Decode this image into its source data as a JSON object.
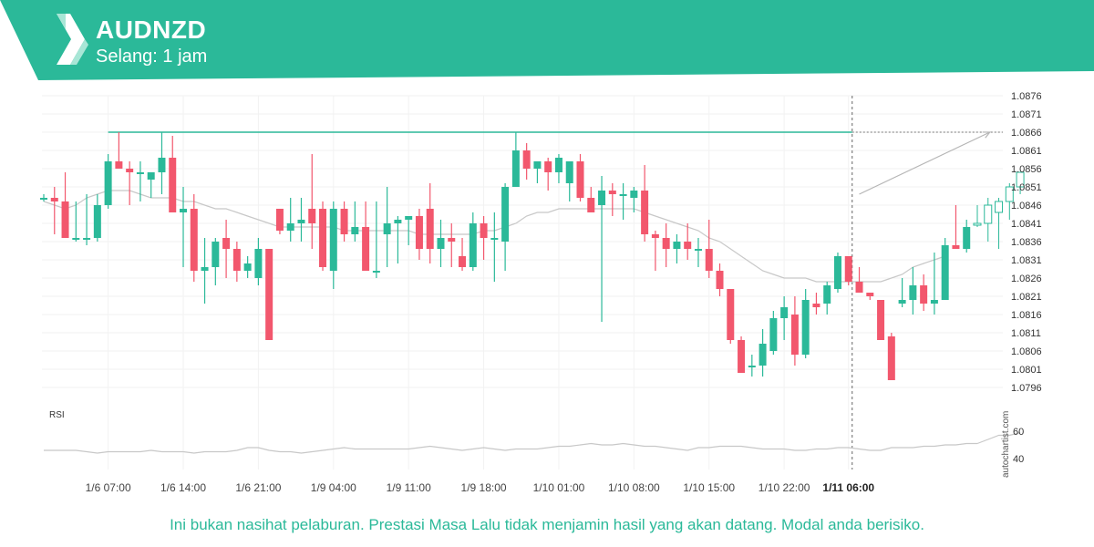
{
  "header": {
    "symbol": "AUDNZD",
    "interval": "Selang: 1 jam",
    "color": "#2bb999"
  },
  "footer": {
    "disclaimer": "Ini bukan nasihat pelaburan. Prestasi Masa Lalu tidak menjamin hasil yang akan datang. Modal anda berisiko."
  },
  "watermark": "autochartist.com",
  "chart_data": {
    "type": "candlestick",
    "colors": {
      "up": "#2bb999",
      "down": "#f2576d",
      "ma": "#c8c8c8",
      "level": "#2bb999",
      "projection": "#b5b5b5",
      "rsi": "#c8c8c8"
    },
    "y_ticks": [
      "1.0876",
      "1.0871",
      "1.0866",
      "1.0861",
      "1.0856",
      "1.0851",
      "1.0846",
      "1.0841",
      "1.0836",
      "1.0831",
      "1.0826",
      "1.0821",
      "1.0816",
      "1.0811",
      "1.0806",
      "1.0801",
      "1.0796"
    ],
    "ylim": [
      1.0792,
      1.0878
    ],
    "x_ticks": [
      {
        "label": "1/6 07:00",
        "index": 6
      },
      {
        "label": "1/6 14:00",
        "index": 13
      },
      {
        "label": "1/6 21:00",
        "index": 20
      },
      {
        "label": "1/9 04:00",
        "index": 27
      },
      {
        "label": "1/9 11:00",
        "index": 34
      },
      {
        "label": "1/9 18:00",
        "index": 41
      },
      {
        "label": "1/10 01:00",
        "index": 48
      },
      {
        "label": "1/10 08:00",
        "index": 55
      },
      {
        "label": "1/10 15:00",
        "index": 62
      },
      {
        "label": "1/10 22:00",
        "index": 69
      },
      {
        "label": "1/11 06:00",
        "index": 75,
        "highlight": true
      }
    ],
    "current_index": 75,
    "level": {
      "value": 1.0866,
      "from_index": 6
    },
    "projection": {
      "from_index": 76,
      "from_value": 1.0849,
      "to_index": 88,
      "to_value": 1.0866
    },
    "candles": [
      {
        "o": 1.0848,
        "h": 1.0849,
        "l": 1.0847,
        "c": 1.0848
      },
      {
        "o": 1.0848,
        "h": 1.0851,
        "l": 1.0838,
        "c": 1.0847
      },
      {
        "o": 1.0847,
        "h": 1.0855,
        "l": 1.0837,
        "c": 1.0837
      },
      {
        "o": 1.0837,
        "h": 1.0847,
        "l": 1.0836,
        "c": 1.0837
      },
      {
        "o": 1.0837,
        "h": 1.0849,
        "l": 1.0835,
        "c": 1.0837
      },
      {
        "o": 1.0837,
        "h": 1.0849,
        "l": 1.0836,
        "c": 1.0846
      },
      {
        "o": 1.0846,
        "h": 1.086,
        "l": 1.0845,
        "c": 1.0858
      },
      {
        "o": 1.0858,
        "h": 1.0866,
        "l": 1.0856,
        "c": 1.0856
      },
      {
        "o": 1.0856,
        "h": 1.0858,
        "l": 1.0846,
        "c": 1.0855
      },
      {
        "o": 1.0855,
        "h": 1.0858,
        "l": 1.0847,
        "c": 1.0855
      },
      {
        "o": 1.0853,
        "h": 1.0855,
        "l": 1.0848,
        "c": 1.0855
      },
      {
        "o": 1.0855,
        "h": 1.0866,
        "l": 1.0849,
        "c": 1.0859
      },
      {
        "o": 1.0859,
        "h": 1.0865,
        "l": 1.0844,
        "c": 1.0844
      },
      {
        "o": 1.0844,
        "h": 1.0851,
        "l": 1.0829,
        "c": 1.0845
      },
      {
        "o": 1.0845,
        "h": 1.0849,
        "l": 1.0825,
        "c": 1.0828
      },
      {
        "o": 1.0828,
        "h": 1.0837,
        "l": 1.0819,
        "c": 1.0829
      },
      {
        "o": 1.0829,
        "h": 1.0837,
        "l": 1.0824,
        "c": 1.0836
      },
      {
        "o": 1.0837,
        "h": 1.0842,
        "l": 1.0826,
        "c": 1.0834
      },
      {
        "o": 1.0834,
        "h": 1.0836,
        "l": 1.0825,
        "c": 1.0828
      },
      {
        "o": 1.0828,
        "h": 1.0832,
        "l": 1.0826,
        "c": 1.083
      },
      {
        "o": 1.0826,
        "h": 1.0837,
        "l": 1.0824,
        "c": 1.0834
      },
      {
        "o": 1.0834,
        "h": 1.0834,
        "l": 1.0809,
        "c": 1.0809
      },
      {
        "o": 1.0845,
        "h": 1.0845,
        "l": 1.0838,
        "c": 1.0839
      },
      {
        "o": 1.0839,
        "h": 1.0848,
        "l": 1.0836,
        "c": 1.0841
      },
      {
        "o": 1.0841,
        "h": 1.0848,
        "l": 1.0836,
        "c": 1.0842
      },
      {
        "o": 1.0845,
        "h": 1.086,
        "l": 1.0834,
        "c": 1.0841
      },
      {
        "o": 1.0845,
        "h": 1.0847,
        "l": 1.0828,
        "c": 1.0829
      },
      {
        "o": 1.0828,
        "h": 1.0847,
        "l": 1.0823,
        "c": 1.0845
      },
      {
        "o": 1.0845,
        "h": 1.0847,
        "l": 1.0836,
        "c": 1.0838
      },
      {
        "o": 1.0838,
        "h": 1.0847,
        "l": 1.0836,
        "c": 1.084
      },
      {
        "o": 1.084,
        "h": 1.0847,
        "l": 1.0828,
        "c": 1.0828
      },
      {
        "o": 1.0828,
        "h": 1.0847,
        "l": 1.0826,
        "c": 1.0828
      },
      {
        "o": 1.0838,
        "h": 1.0851,
        "l": 1.0829,
        "c": 1.0841
      },
      {
        "o": 1.0841,
        "h": 1.0843,
        "l": 1.083,
        "c": 1.0842
      },
      {
        "o": 1.0842,
        "h": 1.0843,
        "l": 1.0835,
        "c": 1.0843
      },
      {
        "o": 1.0843,
        "h": 1.0845,
        "l": 1.0831,
        "c": 1.0834
      },
      {
        "o": 1.0845,
        "h": 1.0852,
        "l": 1.083,
        "c": 1.0834
      },
      {
        "o": 1.0834,
        "h": 1.0842,
        "l": 1.0829,
        "c": 1.0837
      },
      {
        "o": 1.0837,
        "h": 1.0841,
        "l": 1.0829,
        "c": 1.0836
      },
      {
        "o": 1.0832,
        "h": 1.0837,
        "l": 1.0828,
        "c": 1.0829
      },
      {
        "o": 1.0829,
        "h": 1.0844,
        "l": 1.0828,
        "c": 1.0841
      },
      {
        "o": 1.0841,
        "h": 1.0843,
        "l": 1.0831,
        "c": 1.0837
      },
      {
        "o": 1.0837,
        "h": 1.0844,
        "l": 1.0825,
        "c": 1.0837
      },
      {
        "o": 1.0836,
        "h": 1.0852,
        "l": 1.0828,
        "c": 1.0851
      },
      {
        "o": 1.0851,
        "h": 1.0866,
        "l": 1.0851,
        "c": 1.0861
      },
      {
        "o": 1.0861,
        "h": 1.0863,
        "l": 1.0853,
        "c": 1.0856
      },
      {
        "o": 1.0856,
        "h": 1.0858,
        "l": 1.0852,
        "c": 1.0858
      },
      {
        "o": 1.0858,
        "h": 1.0859,
        "l": 1.085,
        "c": 1.0855
      },
      {
        "o": 1.0855,
        "h": 1.086,
        "l": 1.0852,
        "c": 1.0859
      },
      {
        "o": 1.0852,
        "h": 1.0858,
        "l": 1.0847,
        "c": 1.0858
      },
      {
        "o": 1.0858,
        "h": 1.086,
        "l": 1.0847,
        "c": 1.0848
      },
      {
        "o": 1.0848,
        "h": 1.0851,
        "l": 1.0844,
        "c": 1.0844
      },
      {
        "o": 1.0846,
        "h": 1.0854,
        "l": 1.0814,
        "c": 1.085
      },
      {
        "o": 1.085,
        "h": 1.0852,
        "l": 1.0843,
        "c": 1.0849
      },
      {
        "o": 1.0849,
        "h": 1.0852,
        "l": 1.0842,
        "c": 1.0849
      },
      {
        "o": 1.0848,
        "h": 1.0851,
        "l": 1.0844,
        "c": 1.085
      },
      {
        "o": 1.085,
        "h": 1.0857,
        "l": 1.0836,
        "c": 1.0838
      },
      {
        "o": 1.0838,
        "h": 1.0839,
        "l": 1.0828,
        "c": 1.0837
      },
      {
        "o": 1.0837,
        "h": 1.0841,
        "l": 1.0829,
        "c": 1.0834
      },
      {
        "o": 1.0834,
        "h": 1.0838,
        "l": 1.083,
        "c": 1.0836
      },
      {
        "o": 1.0836,
        "h": 1.0841,
        "l": 1.0831,
        "c": 1.0834
      },
      {
        "o": 1.0834,
        "h": 1.0837,
        "l": 1.0829,
        "c": 1.0834
      },
      {
        "o": 1.0834,
        "h": 1.0842,
        "l": 1.0826,
        "c": 1.0828
      },
      {
        "o": 1.0828,
        "h": 1.083,
        "l": 1.0821,
        "c": 1.0823
      },
      {
        "o": 1.0823,
        "h": 1.0823,
        "l": 1.0808,
        "c": 1.0809
      },
      {
        "o": 1.0809,
        "h": 1.081,
        "l": 1.08,
        "c": 1.08
      },
      {
        "o": 1.0802,
        "h": 1.0805,
        "l": 1.0799,
        "c": 1.0802
      },
      {
        "o": 1.0802,
        "h": 1.0812,
        "l": 1.0799,
        "c": 1.0808
      },
      {
        "o": 1.0806,
        "h": 1.0817,
        "l": 1.0805,
        "c": 1.0815
      },
      {
        "o": 1.0815,
        "h": 1.0821,
        "l": 1.0809,
        "c": 1.0818
      },
      {
        "o": 1.0816,
        "h": 1.0821,
        "l": 1.0802,
        "c": 1.0805
      },
      {
        "o": 1.0805,
        "h": 1.0823,
        "l": 1.0804,
        "c": 1.082
      },
      {
        "o": 1.0819,
        "h": 1.0822,
        "l": 1.0816,
        "c": 1.0818
      },
      {
        "o": 1.0819,
        "h": 1.0825,
        "l": 1.0816,
        "c": 1.0824
      },
      {
        "o": 1.0823,
        "h": 1.0833,
        "l": 1.0822,
        "c": 1.0832
      },
      {
        "o": 1.0832,
        "h": 1.0832,
        "l": 1.0824,
        "c": 1.0825
      },
      {
        "o": 1.0825,
        "h": 1.0829,
        "l": 1.0822,
        "c": 1.0822
      },
      {
        "o": 1.0822,
        "h": 1.0822,
        "l": 1.082,
        "c": 1.0821
      },
      {
        "o": 1.082,
        "h": 1.082,
        "l": 1.0809,
        "c": 1.0809
      },
      {
        "o": 1.081,
        "h": 1.0811,
        "l": 1.0798,
        "c": 1.0798
      },
      {
        "o": 1.0819,
        "h": 1.0826,
        "l": 1.0818,
        "c": 1.082
      },
      {
        "o": 1.082,
        "h": 1.0829,
        "l": 1.0816,
        "c": 1.0824
      },
      {
        "o": 1.0824,
        "h": 1.0827,
        "l": 1.0817,
        "c": 1.0819
      },
      {
        "o": 1.0819,
        "h": 1.0833,
        "l": 1.0816,
        "c": 1.082
      },
      {
        "o": 1.082,
        "h": 1.0837,
        "l": 1.082,
        "c": 1.0835
      },
      {
        "o": 1.0835,
        "h": 1.0846,
        "l": 1.0834,
        "c": 1.0834
      },
      {
        "o": 1.0834,
        "h": 1.0842,
        "l": 1.0833,
        "c": 1.084
      }
    ],
    "future_candles": [
      {
        "o": 1.0841,
        "h": 1.0846,
        "l": 1.084,
        "c": 1.0841
      },
      {
        "o": 1.0841,
        "h": 1.0848,
        "l": 1.0836,
        "c": 1.0846
      },
      {
        "o": 1.0844,
        "h": 1.0848,
        "l": 1.0834,
        "c": 1.0847
      },
      {
        "o": 1.0847,
        "h": 1.0852,
        "l": 1.0842,
        "c": 1.0851
      },
      {
        "o": 1.0851,
        "h": 1.0855,
        "l": 1.0849,
        "c": 1.0855
      }
    ],
    "ma": [
      1.0847,
      1.0846,
      1.0845,
      1.0846,
      1.0848,
      1.0849,
      1.085,
      1.085,
      1.085,
      1.0849,
      1.0848,
      1.0848,
      1.0848,
      1.0847,
      1.0847,
      1.0846,
      1.0845,
      1.0845,
      1.0844,
      1.0843,
      1.0842,
      1.0841,
      1.084,
      1.084,
      1.084,
      1.084,
      1.084,
      1.084,
      1.0839,
      1.0839,
      1.0839,
      1.0839,
      1.0839,
      1.0839,
      1.0839,
      1.0838,
      1.0838,
      1.0838,
      1.0838,
      1.0838,
      1.0838,
      1.0839,
      1.0839,
      1.084,
      1.0841,
      1.0843,
      1.0844,
      1.0844,
      1.0845,
      1.0845,
      1.0845,
      1.0845,
      1.0845,
      1.0845,
      1.0845,
      1.0845,
      1.0844,
      1.0843,
      1.0842,
      1.0841,
      1.084,
      1.0839,
      1.0837,
      1.0836,
      1.0834,
      1.0832,
      1.083,
      1.0828,
      1.0827,
      1.0826,
      1.0826,
      1.0826,
      1.0825,
      1.0825,
      1.0825,
      1.0825,
      1.0825,
      1.0825,
      1.0825,
      1.0826,
      1.0827,
      1.0829,
      1.083,
      1.0831,
      1.0832
    ],
    "rsi": {
      "label": "RSI",
      "y_ticks": [
        "60",
        "40"
      ],
      "ylim": [
        30,
        70
      ],
      "values": [
        46,
        46,
        46,
        46,
        45,
        44,
        45,
        45,
        45,
        45,
        46,
        45,
        45,
        45,
        44,
        45,
        45,
        45,
        46,
        48,
        48,
        46,
        45,
        45,
        44,
        45,
        46,
        47,
        48,
        47,
        47,
        47,
        47,
        47,
        47,
        48,
        49,
        48,
        47,
        46,
        47,
        48,
        47,
        46,
        47,
        47,
        47,
        48,
        49,
        49,
        50,
        51,
        50,
        50,
        51,
        50,
        49,
        49,
        48,
        47,
        46,
        48,
        48,
        49,
        49,
        49,
        48,
        47,
        47,
        47,
        46,
        46,
        47,
        47,
        48,
        48,
        47,
        46,
        46,
        48,
        48,
        48,
        49,
        49,
        50,
        50,
        51,
        51
      ],
      "future_values": [
        51,
        54,
        57,
        57,
        59
      ]
    }
  }
}
